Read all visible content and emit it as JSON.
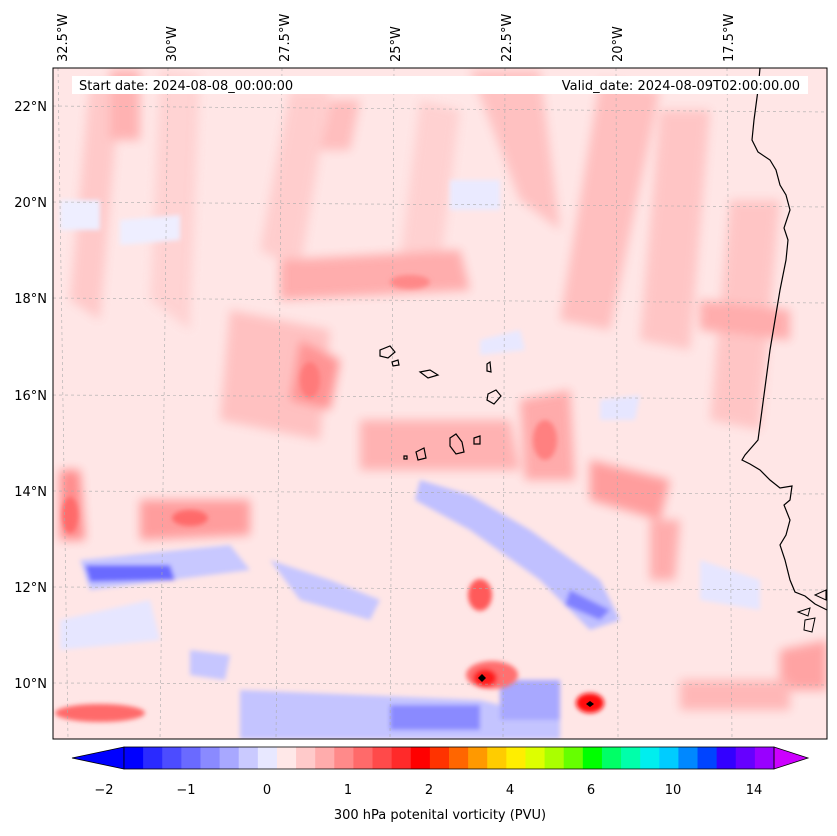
{
  "header": {
    "start_date": "Start date: 2024-08-08_00:00:00",
    "valid_date": "Valid_date: 2024-08-09T02:00:00.00"
  },
  "map": {
    "projection": "lambert-conformal",
    "region": "Cape Verde / West Africa coast",
    "lon_labels": [
      "32.5°W",
      "30°W",
      "27.5°W",
      "25°W",
      "22.5°W",
      "20°W",
      "17.5°W"
    ],
    "lat_labels": [
      "22°N",
      "20°N",
      "18°N",
      "16°N",
      "14°N",
      "12°N",
      "10°N"
    ]
  },
  "colorbar": {
    "label": "300 hPa potenital vorticity (PVU)",
    "tick_labels": [
      "−2",
      "−1",
      "0",
      "1",
      "2",
      "4",
      "6",
      "10",
      "14"
    ],
    "colors": [
      "#0000ff",
      "#2a2aff",
      "#4c4cff",
      "#6a6aff",
      "#8a8aff",
      "#a8a8ff",
      "#cacaff",
      "#e8e8ff",
      "#ffe8e8",
      "#ffcaca",
      "#ffacac",
      "#ff8a8a",
      "#ff6a6a",
      "#ff4a4a",
      "#ff2a2a",
      "#ff0000",
      "#ff3300",
      "#ff6600",
      "#ff9900",
      "#ffcc00",
      "#ffee00",
      "#ddff00",
      "#aaff00",
      "#66ff00",
      "#00ff00",
      "#00ff66",
      "#00ffaa",
      "#00eeee",
      "#00ccff",
      "#0088ff",
      "#0044ff",
      "#3300ff",
      "#6600ff",
      "#9900ff"
    ],
    "extend_low": "#0000ff",
    "extend_high": "#cc00ff"
  }
}
